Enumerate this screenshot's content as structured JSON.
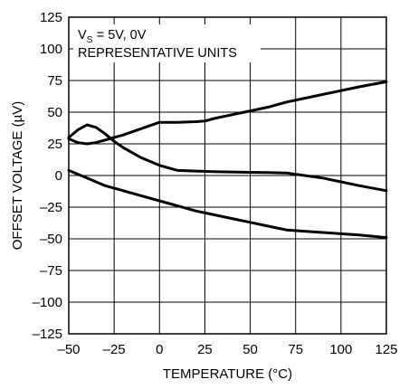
{
  "chart_data": {
    "type": "line",
    "title": "",
    "xlabel": "TEMPERATURE (°C)",
    "ylabel": "OFFSET VOLTAGE (µV)",
    "xlim": [
      -50,
      125
    ],
    "ylim": [
      -125,
      125
    ],
    "x_ticks": [
      -50,
      -25,
      0,
      25,
      50,
      75,
      100,
      125
    ],
    "x_tick_labels": [
      "–50",
      "–25",
      "0",
      "25",
      "50",
      "75",
      "100",
      "125"
    ],
    "y_ticks": [
      125,
      100,
      75,
      50,
      25,
      0,
      -25,
      -50,
      -75,
      -100,
      -125
    ],
    "y_tick_labels": [
      "125",
      "100",
      "75",
      "50",
      "25",
      "0",
      "–25",
      "–50",
      "–75",
      "–100",
      "–125"
    ],
    "grid": true,
    "annotation": {
      "line1_prefix": "V",
      "line1_sub": "S",
      "line1_suffix": " = 5V, 0V",
      "line2": "REPRESENTATIVE UNITS"
    },
    "series": [
      {
        "x": [
          -50,
          -45,
          -40,
          -35,
          -30,
          -25,
          -20,
          -10,
          0,
          10,
          20,
          30,
          40,
          50,
          60,
          70,
          80,
          90,
          100,
          110,
          125
        ],
        "y": [
          30,
          36,
          40,
          38,
          33,
          27,
          22,
          14,
          8,
          4,
          3.5,
          3,
          2.8,
          2.5,
          2.3,
          2,
          0,
          -2,
          -5,
          -8,
          -12
        ]
      },
      {
        "x": [
          -50,
          -45,
          -40,
          -35,
          -30,
          -25,
          -20,
          -10,
          0,
          10,
          20,
          25,
          30,
          40,
          50,
          60,
          70,
          80,
          90,
          100,
          110,
          125
        ],
        "y": [
          29,
          26,
          25,
          26,
          28,
          30,
          32,
          37,
          42,
          42,
          42.5,
          43,
          45,
          48,
          51,
          54,
          58,
          61,
          64,
          67,
          70,
          74
        ]
      },
      {
        "x": [
          -50,
          -40,
          -30,
          -20,
          -10,
          0,
          10,
          20,
          30,
          40,
          50,
          60,
          70,
          80,
          90,
          100,
          110,
          125
        ],
        "y": [
          4,
          -2,
          -8,
          -12,
          -16,
          -20,
          -24,
          -28,
          -31,
          -34,
          -37,
          -40,
          -43,
          -44,
          -45,
          -46,
          -47,
          -49
        ]
      }
    ]
  }
}
